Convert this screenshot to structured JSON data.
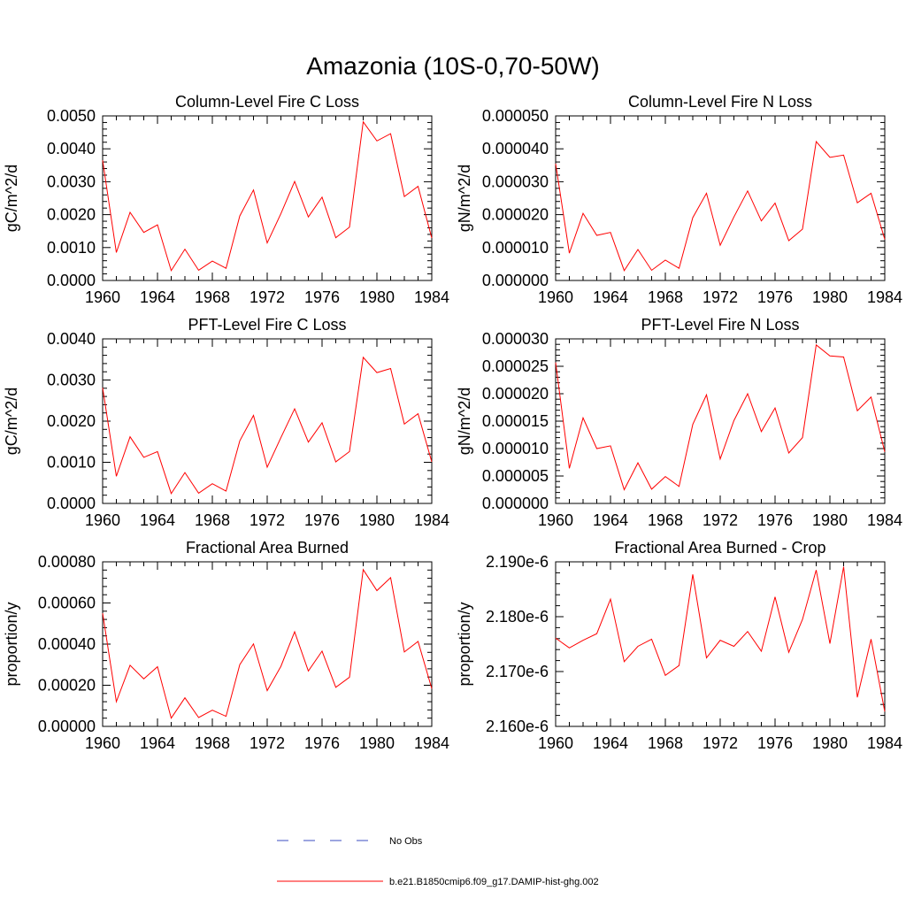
{
  "figure": {
    "title": "Amazonia (10S-0,70-50W)",
    "legend": [
      {
        "label": "No Obs",
        "color": "#3b4cc0",
        "dash": true
      },
      {
        "label": "b.e21.B1850cmip6.f09_g17.DAMIP-hist-ghg.002",
        "color": "#ff0000",
        "dash": false
      }
    ]
  },
  "chart_data": [
    {
      "type": "line",
      "title": "Column-Level Fire C Loss",
      "ylabel": "gC/m^2/d",
      "xlim": [
        1960,
        1984
      ],
      "ylim": [
        0,
        0.005
      ],
      "xticks": [
        1960,
        1964,
        1968,
        1972,
        1976,
        1980,
        1984
      ],
      "xtick_labels": [
        "1960",
        "1964",
        "1968",
        "1972",
        "1976",
        "1980",
        "1984"
      ],
      "yticks": [
        0,
        0.001,
        0.002,
        0.003,
        0.004,
        0.005
      ],
      "ytick_labels": [
        "0.0000",
        "0.0010",
        "0.0020",
        "0.0030",
        "0.0040",
        "0.0050"
      ],
      "x": [
        1960,
        1961,
        1962,
        1963,
        1964,
        1965,
        1966,
        1967,
        1968,
        1969,
        1970,
        1971,
        1972,
        1973,
        1974,
        1975,
        1976,
        1977,
        1978,
        1979,
        1980,
        1981,
        1982,
        1983,
        1984
      ],
      "series": [
        {
          "name": "b.e21.B1850cmip6.f09_g17.DAMIP-hist-ghg.002",
          "color": "#ff0000",
          "values": [
            0.00365,
            0.00085,
            0.00207,
            0.00146,
            0.00169,
            0.0003,
            0.00095,
            0.00031,
            0.00059,
            0.00037,
            0.00196,
            0.00275,
            0.00114,
            0.00203,
            0.00301,
            0.00193,
            0.00253,
            0.0013,
            0.00162,
            0.00482,
            0.00424,
            0.00446,
            0.00255,
            0.00286,
            0.00129
          ]
        }
      ]
    },
    {
      "type": "line",
      "title": "Column-Level Fire N Loss",
      "ylabel": "gN/m^2/d",
      "xlim": [
        1960,
        1984
      ],
      "ylim": [
        0,
        5e-05
      ],
      "xticks": [
        1960,
        1964,
        1968,
        1972,
        1976,
        1980,
        1984
      ],
      "xtick_labels": [
        "1960",
        "1964",
        "1968",
        "1972",
        "1976",
        "1980",
        "1984"
      ],
      "yticks": [
        0,
        1e-05,
        2e-05,
        3e-05,
        4e-05,
        5e-05
      ],
      "ytick_labels": [
        "0.000000",
        "0.000010",
        "0.000020",
        "0.000030",
        "0.000040",
        "0.000050"
      ],
      "x": [
        1960,
        1961,
        1962,
        1963,
        1964,
        1965,
        1966,
        1967,
        1968,
        1969,
        1970,
        1971,
        1972,
        1973,
        1974,
        1975,
        1976,
        1977,
        1978,
        1979,
        1980,
        1981,
        1982,
        1983,
        1984
      ],
      "series": [
        {
          "name": "b.e21.B1850cmip6.f09_g17.DAMIP-hist-ghg.002",
          "color": "#ff0000",
          "values": [
            3.55e-05,
            8.3e-06,
            2.04e-05,
            1.37e-05,
            1.46e-05,
            3e-06,
            9.4e-06,
            3.1e-06,
            6.2e-06,
            3.7e-06,
            1.91e-05,
            2.65e-05,
            1.07e-05,
            1.93e-05,
            2.72e-05,
            1.81e-05,
            2.35e-05,
            1.21e-05,
            1.56e-05,
            4.22e-05,
            3.74e-05,
            3.81e-05,
            2.36e-05,
            2.65e-05,
            1.25e-05
          ]
        }
      ]
    },
    {
      "type": "line",
      "title": "PFT-Level Fire C Loss",
      "ylabel": "gC/m^2/d",
      "xlim": [
        1960,
        1984
      ],
      "ylim": [
        0,
        0.004
      ],
      "xticks": [
        1960,
        1964,
        1968,
        1972,
        1976,
        1980,
        1984
      ],
      "xtick_labels": [
        "1960",
        "1964",
        "1968",
        "1972",
        "1976",
        "1980",
        "1984"
      ],
      "yticks": [
        0,
        0.001,
        0.002,
        0.003,
        0.004
      ],
      "ytick_labels": [
        "0.0000",
        "0.0010",
        "0.0020",
        "0.0030",
        "0.0040"
      ],
      "x": [
        1960,
        1961,
        1962,
        1963,
        1964,
        1965,
        1966,
        1967,
        1968,
        1969,
        1970,
        1971,
        1972,
        1973,
        1974,
        1975,
        1976,
        1977,
        1978,
        1979,
        1980,
        1981,
        1982,
        1983,
        1984
      ],
      "series": [
        {
          "name": "b.e21.B1850cmip6.f09_g17.DAMIP-hist-ghg.002",
          "color": "#ff0000",
          "values": [
            0.00281,
            0.00066,
            0.00162,
            0.00112,
            0.00126,
            0.00024,
            0.00075,
            0.00025,
            0.00048,
            0.0003,
            0.00152,
            0.00214,
            0.00088,
            0.0016,
            0.0023,
            0.00149,
            0.00196,
            0.00101,
            0.00126,
            0.00355,
            0.00318,
            0.00328,
            0.00193,
            0.00218,
            0.00101
          ]
        }
      ]
    },
    {
      "type": "line",
      "title": "PFT-Level Fire N Loss",
      "ylabel": "gN/m^2/d",
      "xlim": [
        1960,
        1984
      ],
      "ylim": [
        0,
        3e-05
      ],
      "xticks": [
        1960,
        1964,
        1968,
        1972,
        1976,
        1980,
        1984
      ],
      "xtick_labels": [
        "1960",
        "1964",
        "1968",
        "1972",
        "1976",
        "1980",
        "1984"
      ],
      "yticks": [
        0,
        5e-06,
        1e-05,
        1.5e-05,
        2e-05,
        2.5e-05,
        3e-05
      ],
      "ytick_labels": [
        "0.000000",
        "0.000005",
        "0.000010",
        "0.000015",
        "0.000020",
        "0.000025",
        "0.000030"
      ],
      "x": [
        1960,
        1961,
        1962,
        1963,
        1964,
        1965,
        1966,
        1967,
        1968,
        1969,
        1970,
        1971,
        1972,
        1973,
        1974,
        1975,
        1976,
        1977,
        1978,
        1979,
        1980,
        1981,
        1982,
        1983,
        1984
      ],
      "series": [
        {
          "name": "b.e21.B1850cmip6.f09_g17.DAMIP-hist-ghg.002",
          "color": "#ff0000",
          "values": [
            2.57e-05,
            6.4e-06,
            1.56e-05,
            1e-05,
            1.05e-05,
            2.5e-06,
            7.4e-06,
            2.6e-06,
            4.9e-06,
            3.1e-06,
            1.44e-05,
            1.98e-05,
            8.1e-06,
            1.51e-05,
            2e-05,
            1.31e-05,
            1.74e-05,
            9.2e-06,
            1.2e-05,
            2.89e-05,
            2.69e-05,
            2.67e-05,
            1.69e-05,
            1.94e-05,
            9.4e-06
          ]
        }
      ]
    },
    {
      "type": "line",
      "title": "Fractional Area Burned",
      "ylabel": "proportion/y",
      "xlim": [
        1960,
        1984
      ],
      "ylim": [
        0,
        0.0008
      ],
      "xticks": [
        1960,
        1964,
        1968,
        1972,
        1976,
        1980,
        1984
      ],
      "xtick_labels": [
        "1960",
        "1964",
        "1968",
        "1972",
        "1976",
        "1980",
        "1984"
      ],
      "yticks": [
        0,
        0.0002,
        0.0004,
        0.0006,
        0.0008
      ],
      "ytick_labels": [
        "0.00000",
        "0.00020",
        "0.00040",
        "0.00060",
        "0.00080"
      ],
      "x": [
        1960,
        1961,
        1962,
        1963,
        1964,
        1965,
        1966,
        1967,
        1968,
        1969,
        1970,
        1971,
        1972,
        1973,
        1974,
        1975,
        1976,
        1977,
        1978,
        1979,
        1980,
        1981,
        1982,
        1983,
        1984
      ],
      "series": [
        {
          "name": "b.e21.B1850cmip6.f09_g17.DAMIP-hist-ghg.002",
          "color": "#ff0000",
          "values": [
            0.00055,
            0.00012,
            0.000297,
            0.000231,
            0.00029,
            4e-05,
            0.000139,
            4.3e-05,
            7.9e-05,
            4.9e-05,
            0.0003,
            0.000401,
            0.000174,
            0.000292,
            0.00046,
            0.000269,
            0.000366,
            0.00019,
            0.000239,
            0.000762,
            0.00066,
            0.000723,
            0.000362,
            0.000413,
            0.000184
          ]
        }
      ]
    },
    {
      "type": "line",
      "title": "Fractional Area Burned - Crop",
      "ylabel": "proportion/y",
      "xlim": [
        1960,
        1984
      ],
      "ylim": [
        2.16e-06,
        2.19e-06
      ],
      "xticks": [
        1960,
        1964,
        1968,
        1972,
        1976,
        1980,
        1984
      ],
      "xtick_labels": [
        "1960",
        "1964",
        "1968",
        "1972",
        "1976",
        "1980",
        "1984"
      ],
      "yticks": [
        2.16e-06,
        2.17e-06,
        2.18e-06,
        2.19e-06
      ],
      "ytick_labels": [
        "2.160e-6",
        "2.170e-6",
        "2.180e-6",
        "2.190e-6"
      ],
      "x": [
        1960,
        1961,
        1962,
        1963,
        1964,
        1965,
        1966,
        1967,
        1968,
        1969,
        1970,
        1971,
        1972,
        1973,
        1974,
        1975,
        1976,
        1977,
        1978,
        1979,
        1980,
        1981,
        1982,
        1983,
        1984
      ],
      "series": [
        {
          "name": "b.e21.B1850cmip6.f09_g17.DAMIP-hist-ghg.002",
          "color": "#ff0000",
          "values": [
            2.1761e-06,
            2.1743e-06,
            2.1757e-06,
            2.1769e-06,
            2.1832e-06,
            2.1718e-06,
            2.1746e-06,
            2.1759e-06,
            2.1693e-06,
            2.1711e-06,
            2.1877e-06,
            2.1725e-06,
            2.1757e-06,
            2.1746e-06,
            2.1773e-06,
            2.1737e-06,
            2.1836e-06,
            2.1735e-06,
            2.1795e-06,
            2.1885e-06,
            2.1751e-06,
            2.1891e-06,
            2.1653e-06,
            2.1759e-06,
            2.1627e-06
          ]
        }
      ]
    }
  ]
}
